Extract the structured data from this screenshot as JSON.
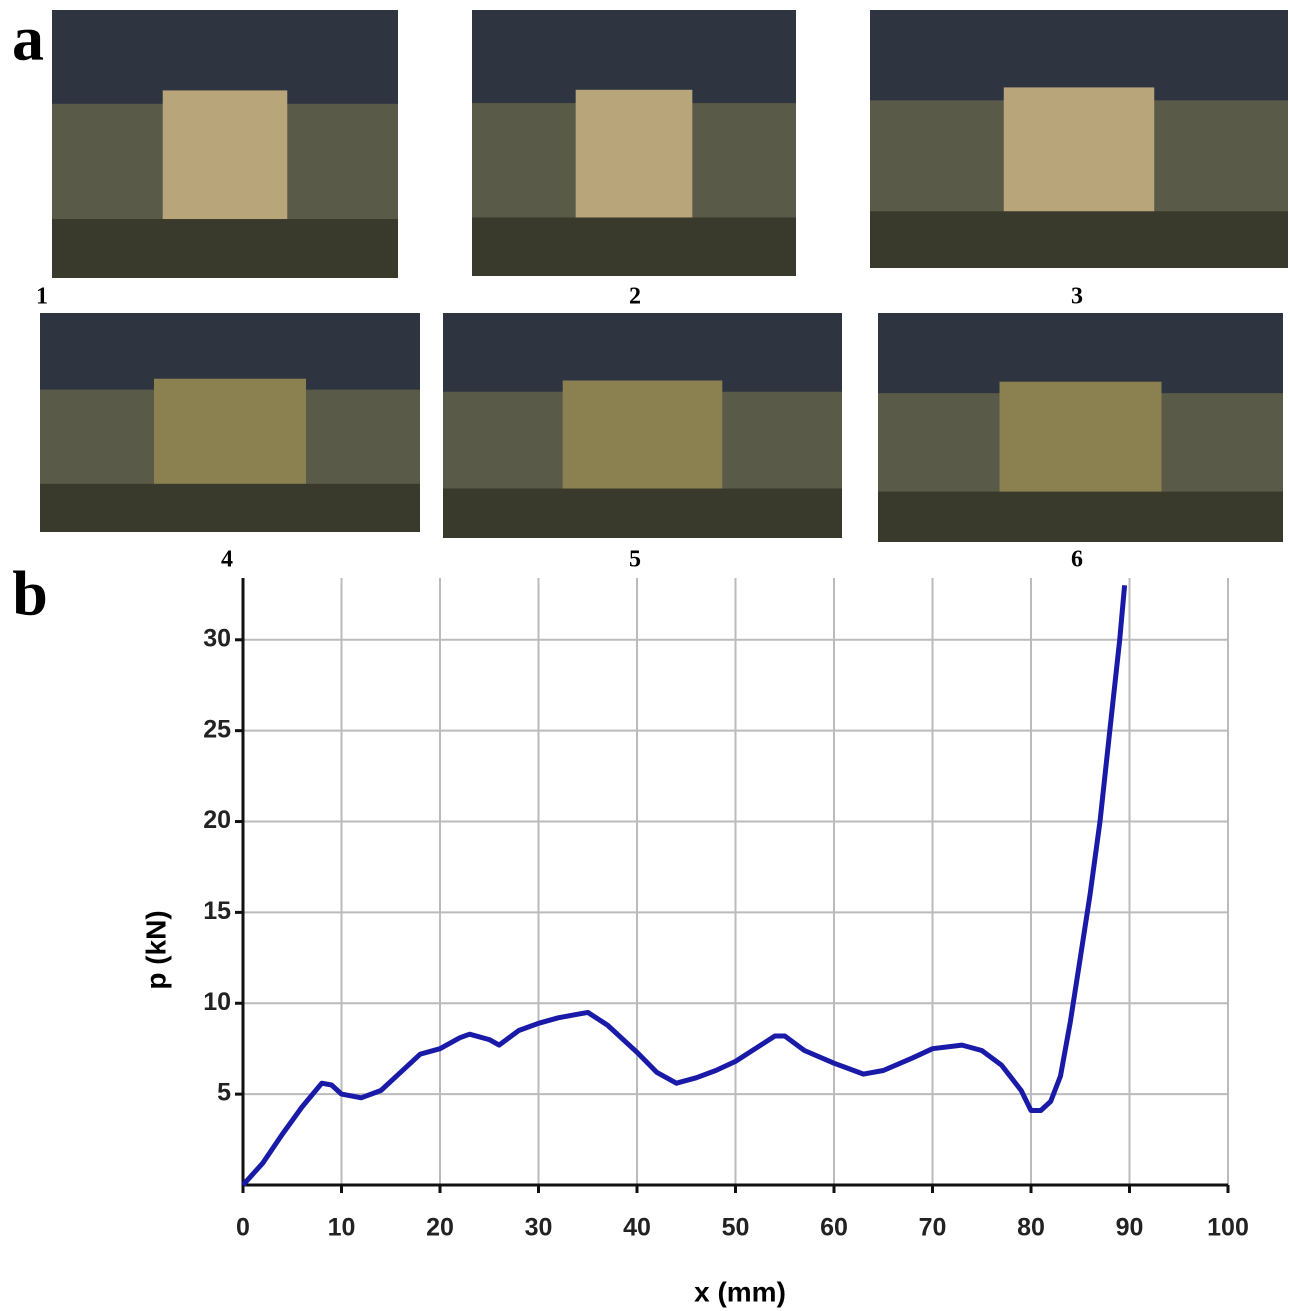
{
  "figure": {
    "panel_a_label": "a",
    "panel_b_label": "b",
    "photo_labels": [
      "1",
      "2",
      "3",
      "4",
      "5",
      "6"
    ]
  },
  "chart_data": {
    "type": "line",
    "xlabel": "x (mm)",
    "ylabel": "p (kN)",
    "x": [
      0,
      2,
      4,
      6,
      8,
      9,
      10,
      12,
      14,
      16,
      18,
      20,
      22,
      23,
      25,
      26,
      28,
      30,
      32,
      34,
      35,
      37,
      40,
      42,
      44,
      46,
      48,
      50,
      52,
      54,
      55,
      57,
      60,
      63,
      65,
      68,
      70,
      73,
      75,
      77,
      79,
      80,
      81,
      82,
      83,
      84,
      85,
      86,
      87,
      88,
      89,
      89.5
    ],
    "values": [
      0,
      1.2,
      2.8,
      4.3,
      5.6,
      5.5,
      5.0,
      4.8,
      5.2,
      6.2,
      7.2,
      7.5,
      8.1,
      8.3,
      8.0,
      7.7,
      8.5,
      8.9,
      9.2,
      9.4,
      9.5,
      8.8,
      7.3,
      6.2,
      5.6,
      5.9,
      6.3,
      6.8,
      7.5,
      8.2,
      8.2,
      7.4,
      6.7,
      6.1,
      6.3,
      7.0,
      7.5,
      7.7,
      7.4,
      6.6,
      5.2,
      4.1,
      4.1,
      4.6,
      6.0,
      9.0,
      12.5,
      16.0,
      20.0,
      25.0,
      30.0,
      33.0
    ],
    "color": "#1a1aa8",
    "xlim": [
      0,
      100
    ],
    "xticks": [
      0,
      10,
      20,
      30,
      40,
      50,
      60,
      70,
      80,
      90,
      100
    ],
    "ylim": [
      0,
      33.4
    ],
    "yticks": [
      5,
      10,
      15,
      20,
      25,
      30
    ],
    "grid": true
  }
}
